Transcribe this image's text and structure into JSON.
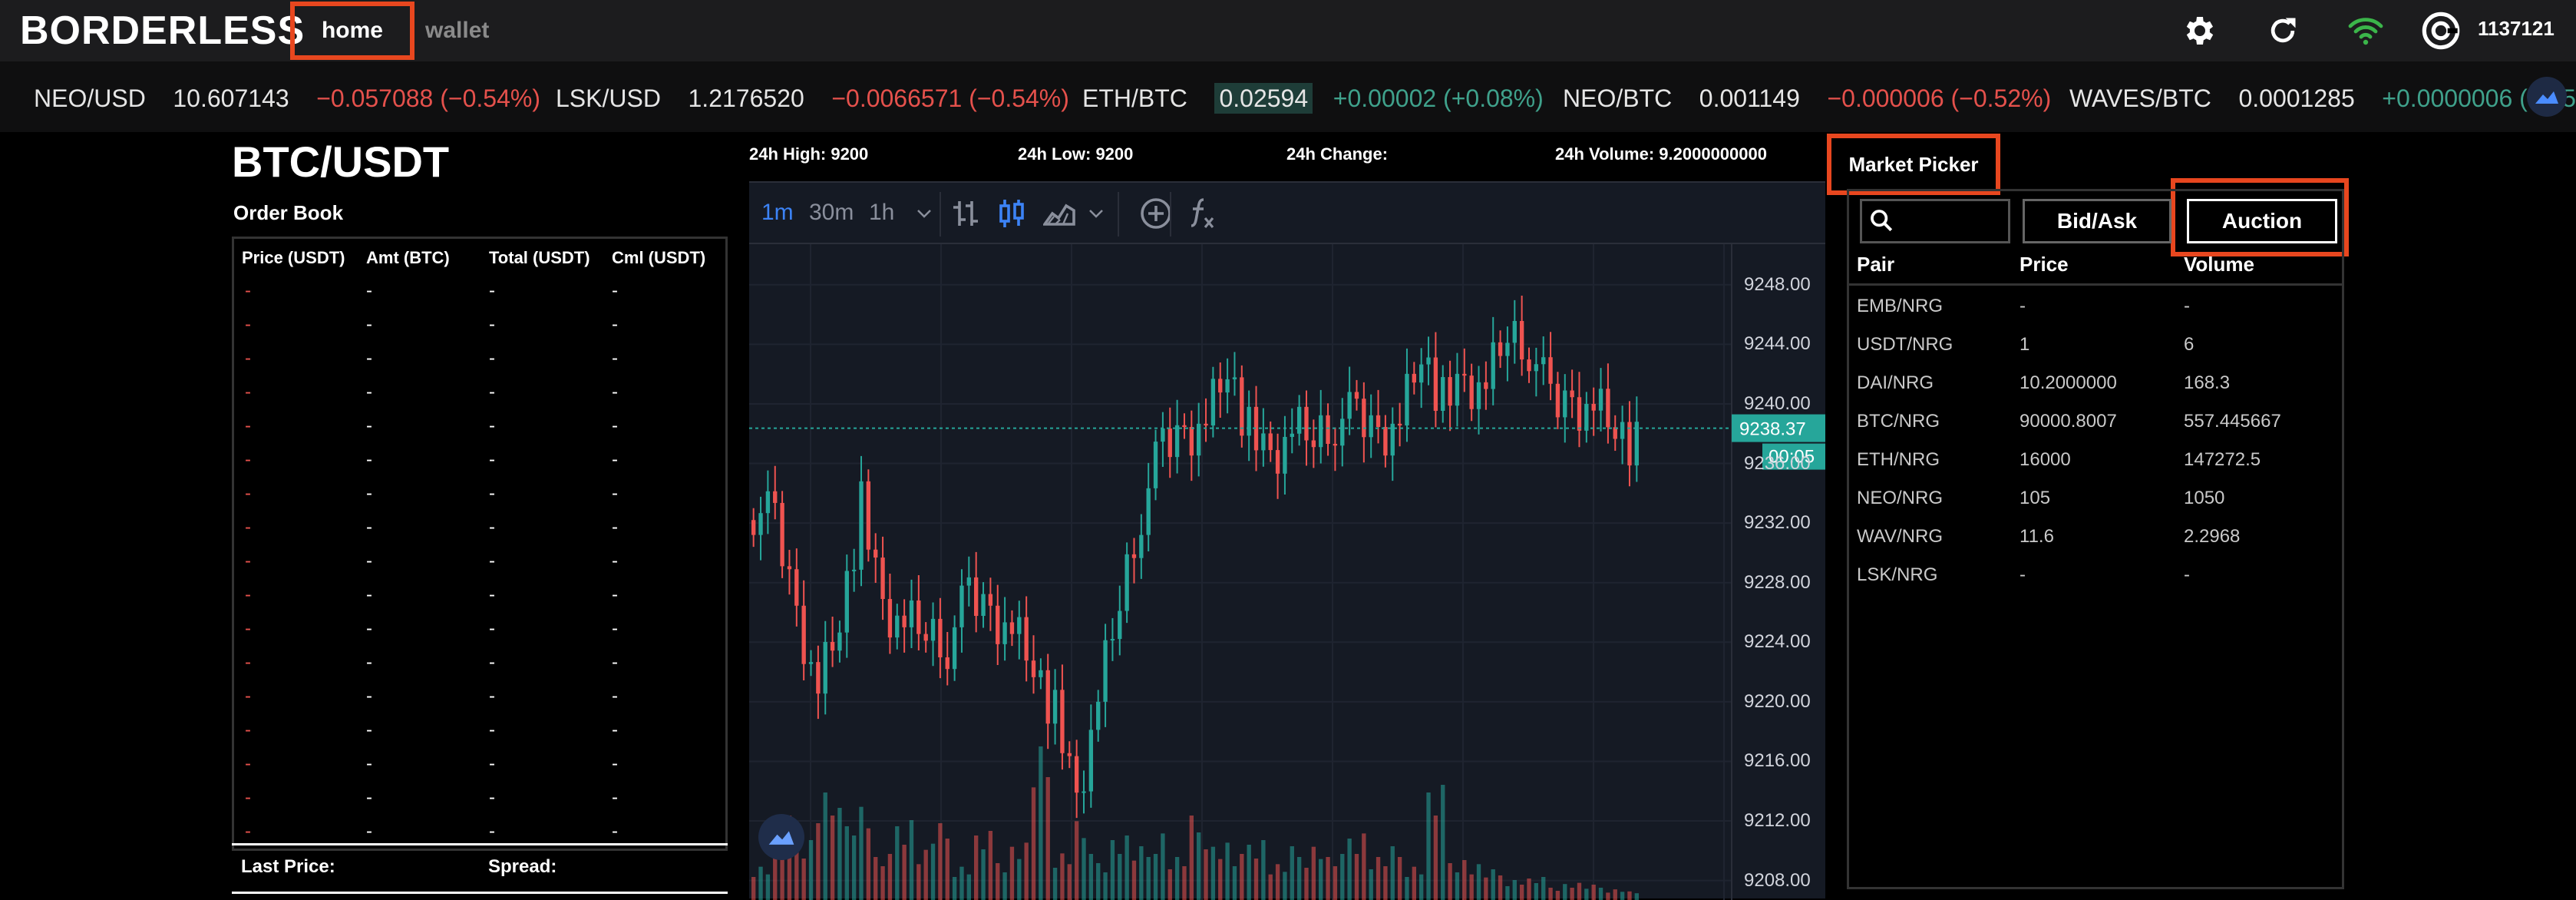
{
  "header": {
    "brand": "BORDERLESS",
    "nav": {
      "home": "home",
      "wallet": "wallet"
    },
    "user_id": "1137121",
    "icons": [
      "gear-icon",
      "refresh-icon",
      "wifi-icon",
      "account-icon"
    ],
    "colors": {
      "accent_highlight": "#e8471f",
      "wifi": "#3bb54a"
    }
  },
  "ticker": [
    {
      "pair": "NEO/USD",
      "price": "10.607143",
      "change": "−0.057088 (−0.54%)",
      "direction": "down"
    },
    {
      "pair": "LSK/USD",
      "price": "1.2176520",
      "change": "−0.0066571 (−0.54%)",
      "direction": "down"
    },
    {
      "pair": "ETH/BTC",
      "price": "0.02594",
      "change": "+0.00002 (+0.08%)",
      "direction": "up"
    },
    {
      "pair": "NEO/BTC",
      "price": "0.001149",
      "change": "−0.000006 (−0.52%)",
      "direction": "down"
    },
    {
      "pair": "WAVES/BTC",
      "price": "0.0001285",
      "change": "+0.0000006 (+0.5",
      "direction": "up"
    }
  ],
  "market": {
    "title": "BTC/USDT",
    "stats": {
      "high": "24h High: 9200",
      "low": "24h Low: 9200",
      "change": "24h Change:",
      "volume": "24h Volume: 9.2000000000"
    }
  },
  "orderbook": {
    "label": "Order Book",
    "headers": [
      "Price (USDT)",
      "Amt (BTC)",
      "Total (USDT)",
      "Cml (USDT)"
    ],
    "placeholder": "-",
    "row_count": 17,
    "last_price_label": "Last Price:",
    "spread_label": "Spread:"
  },
  "chart_toolbar": {
    "timeframes": [
      "1m",
      "30m",
      "1h"
    ],
    "active_timeframe": "1m",
    "tools": [
      "bar-style-icon",
      "candles-icon",
      "area-style-icon",
      "dropdown-icon",
      "crosshair-icon",
      "indicator-fx-icon"
    ]
  },
  "chart_data": {
    "type": "candlestick",
    "y_ticks": [
      "9248.00",
      "9244.00",
      "9240.00",
      "9236.00",
      "9232.00",
      "9228.00",
      "9224.00",
      "9220.00",
      "9216.00",
      "9212.00",
      "9208.00"
    ],
    "ylim": [
      9207,
      9250
    ],
    "current_price": "9238.37",
    "countdown": "00:05",
    "colors": {
      "up": "#26a69a",
      "down": "#ef5350",
      "bg": "#151a24"
    },
    "close_path": [
      9233,
      9232,
      9226,
      9221,
      9226,
      9233,
      9226,
      9225,
      9225,
      9224,
      9227,
      9226,
      9225,
      9223,
      9219,
      9213,
      9220,
      9227,
      9233,
      9237,
      9238,
      9239,
      9243,
      9238,
      9236,
      9238,
      9238,
      9239,
      9239,
      9238,
      9239,
      9244,
      9240,
      9241,
      9241,
      9245,
      9244,
      9240,
      9240,
      9240,
      9239,
      9237,
      9237,
      9237,
      9238
    ],
    "volumes": [
      0.25,
      0.55,
      0.45,
      0.75,
      0.6,
      0.7,
      0.3,
      0.6,
      0.35,
      0.5,
      0.25,
      0.45,
      0.3,
      0.4,
      1.0,
      0.35,
      0.55,
      0.3,
      0.45,
      0.35,
      0.5,
      0.3,
      0.55,
      0.4,
      0.3,
      0.45,
      0.25,
      0.35,
      0.4,
      0.3,
      0.5,
      0.3,
      0.35,
      0.25,
      0.75,
      0.3,
      0.25,
      0.2,
      0.15,
      0.15,
      0.1,
      0.12,
      0.1,
      0.08,
      0.06
    ]
  },
  "market_picker": {
    "title": "Market Picker",
    "bidask_label": "Bid/Ask",
    "auction_label": "Auction",
    "search_icon": "search-icon",
    "headers": [
      "Pair",
      "Price",
      "Volume"
    ],
    "rows": [
      {
        "pair": "EMB/NRG",
        "price": "-",
        "volume": "-"
      },
      {
        "pair": "USDT/NRG",
        "price": "1",
        "volume": "6"
      },
      {
        "pair": "DAI/NRG",
        "price": "10.2000000",
        "volume": "168.3"
      },
      {
        "pair": "BTC/NRG",
        "price": "90000.8007",
        "volume": "557.445667"
      },
      {
        "pair": "ETH/NRG",
        "price": "16000",
        "volume": "147272.5"
      },
      {
        "pair": "NEO/NRG",
        "price": "105",
        "volume": "1050"
      },
      {
        "pair": "WAV/NRG",
        "price": "11.6",
        "volume": "2.2968"
      },
      {
        "pair": "LSK/NRG",
        "price": "-",
        "volume": "-"
      }
    ]
  }
}
